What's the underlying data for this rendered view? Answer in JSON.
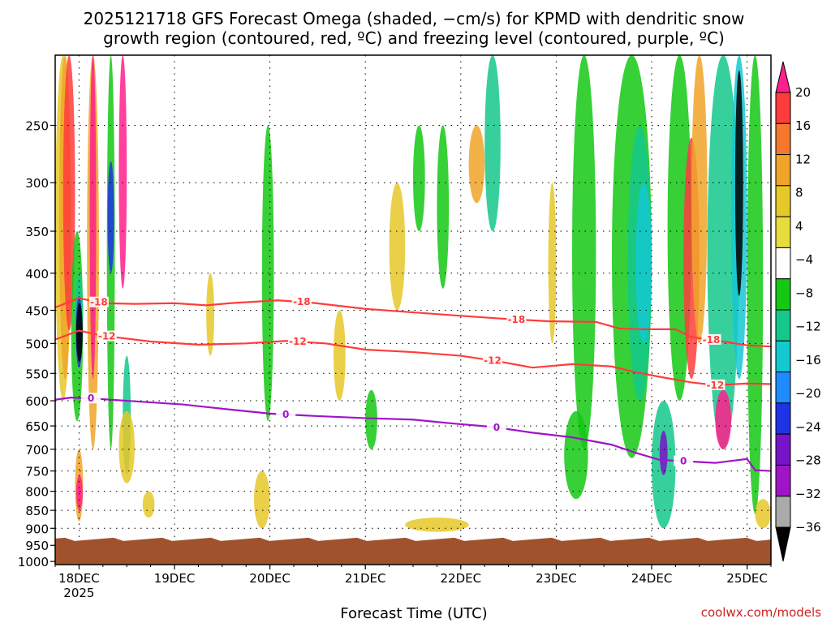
{
  "title_lines": [
    "2025121718 GFS Forecast Omega (shaded, −cm/s) for KPMD with dendritic snow",
    "growth region (contoured, red, ºC) and freezing level (contoured, purple, ºC)"
  ],
  "credit": "coolwx.com/models",
  "chart_data": {
    "type": "heatmap",
    "title": "2025121718 GFS Forecast Omega (shaded, −cm/s) for KPMD with dendritic snow growth region (contoured, red, ºC) and freezing level (contoured, purple, ºC)",
    "xlabel": "Forecast Time (UTC)",
    "ylabel": "",
    "x_ticks": [
      {
        "label": "18DEC",
        "sublabel": "2025",
        "t": 6
      },
      {
        "label": "19DEC",
        "t": 30
      },
      {
        "label": "20DEC",
        "t": 54
      },
      {
        "label": "21DEC",
        "t": 78
      },
      {
        "label": "22DEC",
        "t": 102
      },
      {
        "label": "23DEC",
        "t": 126
      },
      {
        "label": "24DEC",
        "t": 150
      },
      {
        "label": "25DEC",
        "t": 174
      }
    ],
    "x_range_hours": [
      0,
      180
    ],
    "y_ticks": [
      250,
      300,
      350,
      400,
      450,
      500,
      550,
      600,
      650,
      700,
      750,
      800,
      850,
      900,
      950,
      1000
    ],
    "y_range_hPa": [
      200,
      1010
    ],
    "y_scale": "log-pressure",
    "grid": "dotted",
    "surface_pressure_hPa": 932,
    "colorbar": {
      "labels": [
        "20",
        "16",
        "12",
        "8",
        "4",
        "−4",
        "−8",
        "−12",
        "−16",
        "−20",
        "−24",
        "−28",
        "−32",
        "−36"
      ],
      "colors": [
        "#ff1e8c",
        "#ff3c3c",
        "#f5782d",
        "#f0a528",
        "#e6c828",
        "#e6dc3c",
        "#ffffff",
        "#14c814",
        "#14c88c",
        "#14c8d2",
        "#1e8cff",
        "#1e32e6",
        "#7814c8",
        "#a014c8",
        "#aaaaaa",
        "#000000"
      ]
    },
    "contours": [
      {
        "name": "-18",
        "color": "#ff3c3c",
        "label_at": [
          [
            11,
            "-18"
          ],
          [
            62,
            "-18"
          ],
          [
            116,
            "-18"
          ],
          [
            165,
            "-18"
          ]
        ],
        "points": [
          [
            0,
            446
          ],
          [
            6,
            433
          ],
          [
            12,
            440
          ],
          [
            20,
            441
          ],
          [
            30,
            440
          ],
          [
            38,
            443
          ],
          [
            44,
            440
          ],
          [
            56,
            436
          ],
          [
            64,
            439
          ],
          [
            78,
            448
          ],
          [
            90,
            453
          ],
          [
            102,
            458
          ],
          [
            112,
            462
          ],
          [
            124,
            466
          ],
          [
            136,
            467
          ],
          [
            142,
            477
          ],
          [
            148,
            478
          ],
          [
            156,
            478
          ],
          [
            160,
            490
          ],
          [
            168,
            497
          ],
          [
            174,
            503
          ],
          [
            180,
            505
          ]
        ]
      },
      {
        "name": "-12",
        "color": "#ff3c3c",
        "label_at": [
          [
            13,
            "-12"
          ],
          [
            61,
            "-12"
          ],
          [
            110,
            "-12"
          ],
          [
            166,
            "-12"
          ]
        ],
        "points": [
          [
            0,
            494
          ],
          [
            6,
            480
          ],
          [
            12,
            488
          ],
          [
            24,
            497
          ],
          [
            36,
            502
          ],
          [
            48,
            500
          ],
          [
            58,
            496
          ],
          [
            68,
            500
          ],
          [
            78,
            510
          ],
          [
            90,
            514
          ],
          [
            102,
            520
          ],
          [
            112,
            530
          ],
          [
            120,
            540
          ],
          [
            130,
            534
          ],
          [
            140,
            538
          ],
          [
            146,
            548
          ],
          [
            152,
            556
          ],
          [
            160,
            566
          ],
          [
            166,
            571
          ],
          [
            174,
            568
          ],
          [
            180,
            569
          ]
        ]
      },
      {
        "name": "0",
        "color": "#a014c8",
        "label_at": [
          [
            9,
            "0"
          ],
          [
            58,
            "0"
          ],
          [
            111,
            "0"
          ],
          [
            158,
            "0"
          ]
        ],
        "points": [
          [
            0,
            598
          ],
          [
            4,
            594
          ],
          [
            10,
            596
          ],
          [
            20,
            601
          ],
          [
            32,
            607
          ],
          [
            44,
            617
          ],
          [
            54,
            625
          ],
          [
            66,
            630
          ],
          [
            78,
            634
          ],
          [
            90,
            637
          ],
          [
            100,
            645
          ],
          [
            110,
            652
          ],
          [
            120,
            664
          ],
          [
            130,
            674
          ],
          [
            140,
            690
          ],
          [
            146,
            708
          ],
          [
            152,
            724
          ],
          [
            160,
            728
          ],
          [
            166,
            731
          ],
          [
            174,
            722
          ],
          [
            176,
            748
          ],
          [
            180,
            750
          ]
        ]
      }
    ]
  }
}
